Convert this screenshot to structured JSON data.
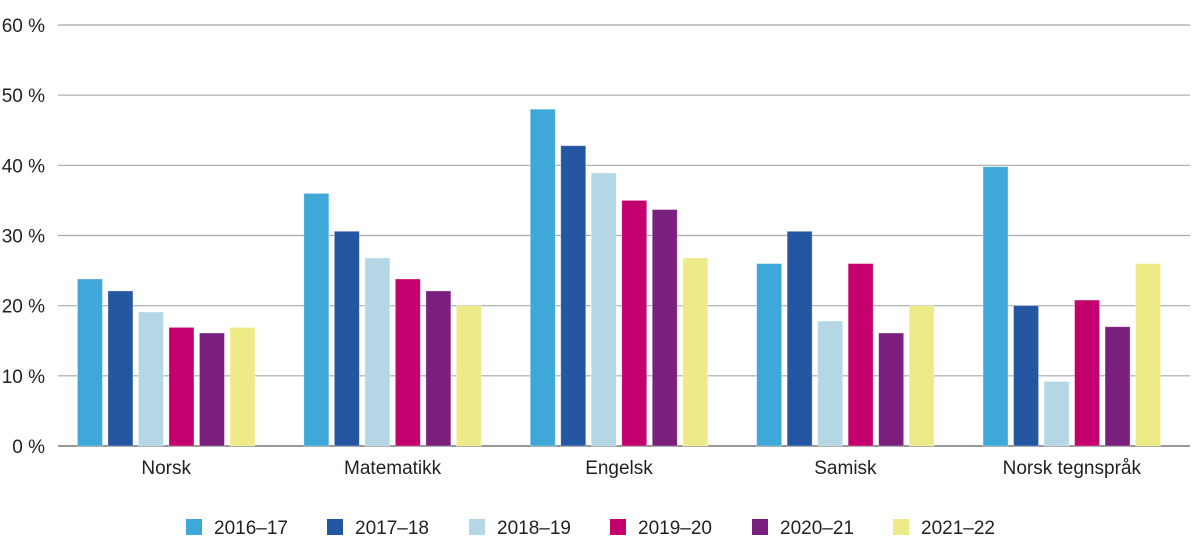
{
  "chart_data": {
    "type": "bar",
    "title": "",
    "xlabel": "",
    "ylabel": "",
    "ylim": [
      0,
      60
    ],
    "yticks": [
      0,
      10,
      20,
      30,
      40,
      50,
      60
    ],
    "ytick_labels": [
      "0 %",
      "10 %",
      "20 %",
      "30 %",
      "40 %",
      "50 %",
      "60 %"
    ],
    "grid": true,
    "legend_position": "bottom",
    "categories": [
      "Norsk",
      "Matematikk",
      "Engelsk",
      "Samisk",
      "Norsk tegnspråk"
    ],
    "series": [
      {
        "name": "2016–17",
        "color": "#3ea8d8",
        "values": [
          23.8,
          36.0,
          48.0,
          26.0,
          39.8
        ]
      },
      {
        "name": "2017–18",
        "color": "#2457a2",
        "values": [
          22.1,
          30.6,
          42.8,
          30.6,
          20.0
        ]
      },
      {
        "name": "2018–19",
        "color": "#b4d7e6",
        "values": [
          19.1,
          26.8,
          38.9,
          17.8,
          9.2
        ]
      },
      {
        "name": "2019–20",
        "color": "#c4006e",
        "values": [
          16.9,
          23.8,
          35.0,
          26.0,
          20.8
        ]
      },
      {
        "name": "2020–21",
        "color": "#7b1f7e",
        "values": [
          16.1,
          22.1,
          33.7,
          16.1,
          17.0
        ]
      },
      {
        "name": "2021–22",
        "color": "#eeea88",
        "values": [
          16.9,
          20.0,
          26.8,
          20.0,
          26.0
        ]
      }
    ]
  }
}
